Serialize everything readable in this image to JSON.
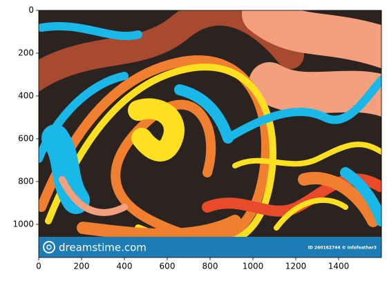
{
  "chart_data": {
    "type": "image",
    "xlim": [
      0,
      1600
    ],
    "ylim": [
      1155,
      0
    ],
    "xticks": [
      0,
      200,
      400,
      600,
      800,
      1000,
      1200,
      1400
    ],
    "yticks": [
      0,
      200,
      400,
      600,
      800,
      1000
    ],
    "watermark": "dreamstime.com",
    "image_id": "ID 260162744 © Infofeather3"
  }
}
